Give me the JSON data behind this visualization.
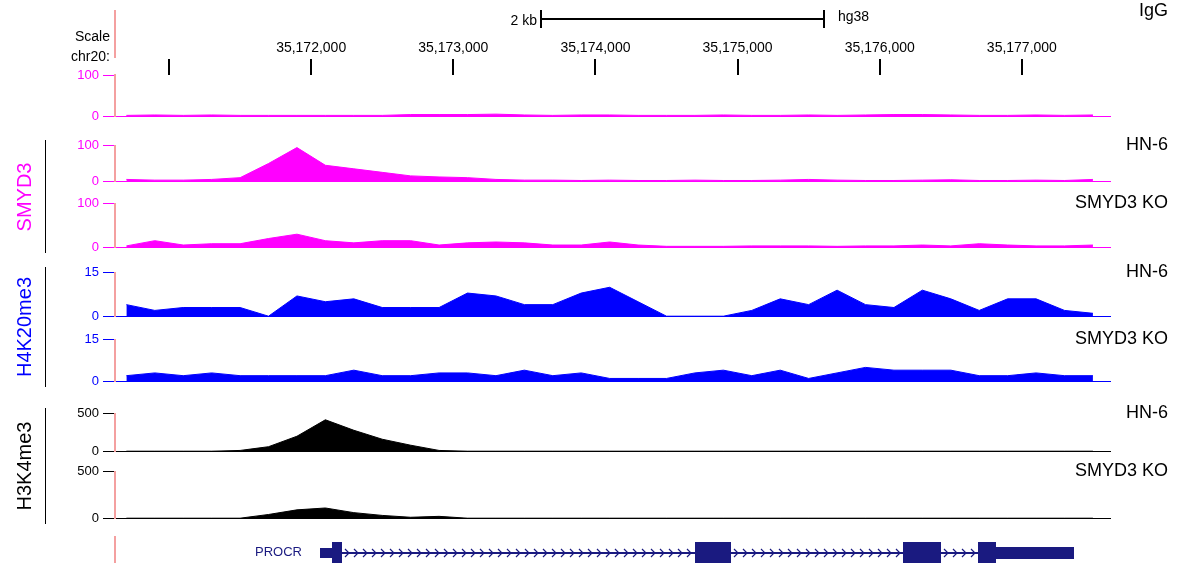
{
  "chart_data": [
    {
      "type": "area",
      "xlim": [
        35170620,
        35177620
      ],
      "xticks": [
        {
          "value": 35171000,
          "label": null
        },
        {
          "value": 35172000,
          "label": "35,172,000"
        },
        {
          "value": 35173000,
          "label": "35,173,000"
        },
        {
          "value": 35174000,
          "label": "35,174,000"
        },
        {
          "value": 35175000,
          "label": "35,175,000"
        },
        {
          "value": 35176000,
          "label": "35,176,000"
        },
        {
          "value": 35177000,
          "label": "35,177,000"
        }
      ],
      "ylim": [
        0,
        100
      ],
      "yticks": [
        0,
        100
      ],
      "annotations": [
        "Scale",
        "chr20:",
        "2 kb",
        "hg38"
      ],
      "x": [
        35170700,
        35170900,
        35171100,
        35171300,
        35171500,
        35171700,
        35171900,
        35172100,
        35172300,
        35172500,
        35172700,
        35172900,
        35173100,
        35173300,
        35173500,
        35173700,
        35173900,
        35174100,
        35174300,
        35174500,
        35174700,
        35174900,
        35175100,
        35175300,
        35175500,
        35175700,
        35175900,
        35176100,
        35176300,
        35176500,
        35176700,
        35176900,
        35177100,
        35177300,
        35177500
      ],
      "series": [
        {
          "name": "IgG",
          "color": "#ff00ff",
          "values": [
            2,
            3,
            2,
            3,
            2,
            2,
            2,
            2,
            2,
            2,
            4,
            4,
            4,
            5,
            3,
            2,
            3,
            3,
            2,
            2,
            2,
            3,
            2,
            2,
            3,
            2,
            3,
            4,
            4,
            3,
            2,
            2,
            3,
            2,
            3
          ]
        }
      ]
    },
    {
      "type": "area",
      "xlim": [
        35170620,
        35177620
      ],
      "ylim": [
        0,
        100
      ],
      "yticks": [
        0,
        100
      ],
      "tick_labels": "y",
      "ylabel": "SMYD3",
      "x": [
        35170700,
        35170900,
        35171100,
        35171300,
        35171500,
        35171700,
        35171900,
        35172100,
        35172300,
        35172500,
        35172700,
        35172900,
        35173100,
        35173300,
        35173500,
        35173700,
        35173900,
        35174100,
        35174300,
        35174500,
        35174700,
        35174900,
        35175100,
        35175300,
        35175500,
        35175700,
        35175900,
        35176100,
        35176300,
        35176500,
        35176700,
        35176900,
        35177100,
        35177300,
        35177500
      ],
      "series": [
        {
          "name": "HN-6",
          "color": "#ff00ff",
          "values": [
            5,
            3,
            3,
            5,
            10,
            50,
            95,
            45,
            35,
            25,
            15,
            12,
            10,
            5,
            3,
            3,
            2,
            3,
            2,
            2,
            3,
            2,
            2,
            3,
            5,
            3,
            2,
            2,
            3,
            4,
            2,
            2,
            3,
            2,
            5
          ]
        }
      ]
    },
    {
      "type": "area",
      "xlim": [
        35170620,
        35177620
      ],
      "ylim": [
        0,
        100
      ],
      "yticks": [
        0,
        100
      ],
      "tick_labels": "y",
      "x": [
        35170700,
        35170900,
        35171100,
        35171300,
        35171500,
        35171700,
        35171900,
        35172100,
        35172300,
        35172500,
        35172700,
        35172900,
        35173100,
        35173300,
        35173500,
        35173700,
        35173900,
        35174100,
        35174300,
        35174500,
        35174700,
        35174900,
        35175100,
        35175300,
        35175500,
        35175700,
        35175900,
        35176100,
        35176300,
        35176500,
        35176700,
        35176900,
        35177100,
        35177300,
        35177500
      ],
      "series": [
        {
          "name": "SMYD3 KO",
          "color": "#ff00ff",
          "values": [
            3,
            15,
            5,
            8,
            8,
            20,
            30,
            15,
            10,
            15,
            15,
            5,
            10,
            12,
            10,
            5,
            5,
            12,
            5,
            2,
            2,
            2,
            3,
            3,
            3,
            2,
            3,
            3,
            5,
            3,
            8,
            5,
            3,
            3,
            5
          ]
        }
      ]
    },
    {
      "type": "area",
      "xlim": [
        35170620,
        35177620
      ],
      "ylim": [
        0,
        15
      ],
      "yticks": [
        0,
        15
      ],
      "tick_labels": "y",
      "ylabel": "H4K20me3",
      "x": [
        35170700,
        35170900,
        35171100,
        35171300,
        35171500,
        35171700,
        35171900,
        35172100,
        35172300,
        35172500,
        35172700,
        35172900,
        35173100,
        35173300,
        35173500,
        35173700,
        35173900,
        35174100,
        35174300,
        35174500,
        35174700,
        35174900,
        35175100,
        35175300,
        35175500,
        35175700,
        35175900,
        35176100,
        35176300,
        35176500,
        35176700,
        35176900,
        35177100,
        35177300,
        35177500
      ],
      "series": [
        {
          "name": "HN-6",
          "color": "#0000ff",
          "values": [
            4,
            2,
            3,
            3,
            3,
            0,
            7,
            5,
            6,
            3,
            3,
            3,
            8,
            7,
            4,
            4,
            8,
            10,
            5,
            0,
            0,
            0,
            2,
            6,
            4,
            9,
            4,
            3,
            9,
            6,
            2,
            6,
            6,
            2,
            1
          ]
        }
      ]
    },
    {
      "type": "area",
      "xlim": [
        35170620,
        35177620
      ],
      "ylim": [
        0,
        15
      ],
      "yticks": [
        0,
        15
      ],
      "tick_labels": "y",
      "x": [
        35170700,
        35170900,
        35171100,
        35171300,
        35171500,
        35171700,
        35171900,
        35172100,
        35172300,
        35172500,
        35172700,
        35172900,
        35173100,
        35173300,
        35173500,
        35173700,
        35173900,
        35174100,
        35174300,
        35174500,
        35174700,
        35174900,
        35175100,
        35175300,
        35175500,
        35175700,
        35175900,
        35176100,
        35176300,
        35176500,
        35176700,
        35176900,
        35177100,
        35177300,
        35177500
      ],
      "series": [
        {
          "name": "SMYD3 KO",
          "color": "#0000ff",
          "values": [
            2,
            3,
            2,
            3,
            2,
            2,
            2,
            2,
            4,
            2,
            2,
            3,
            3,
            2,
            4,
            2,
            3,
            1,
            1,
            1,
            3,
            4,
            2,
            4,
            1,
            3,
            5,
            4,
            4,
            4,
            2,
            2,
            3,
            2,
            2
          ]
        }
      ]
    },
    {
      "type": "area",
      "xlim": [
        35170620,
        35177620
      ],
      "ylim": [
        0,
        500
      ],
      "yticks": [
        0,
        500
      ],
      "tick_labels": "y",
      "ylabel": "H3K4me3",
      "x": [
        35170700,
        35170900,
        35171100,
        35171300,
        35171500,
        35171700,
        35171900,
        35172100,
        35172300,
        35172500,
        35172700,
        35172900,
        35173100,
        35173300,
        35173500,
        35173700,
        35173900,
        35174100,
        35174300,
        35174500,
        35174700,
        35174900,
        35175100,
        35175300,
        35175500,
        35175700,
        35175900,
        35176100,
        35176300,
        35176500,
        35176700,
        35176900,
        35177100,
        35177300,
        35177500
      ],
      "series": [
        {
          "name": "HN-6",
          "color": "#000000",
          "values": [
            0,
            0,
            0,
            0,
            10,
            60,
            200,
            420,
            280,
            160,
            80,
            10,
            0,
            0,
            0,
            0,
            0,
            0,
            0,
            0,
            0,
            0,
            0,
            0,
            0,
            0,
            0,
            0,
            0,
            0,
            0,
            0,
            0,
            0,
            0
          ]
        }
      ]
    },
    {
      "type": "area",
      "xlim": [
        35170620,
        35177620
      ],
      "ylim": [
        0,
        500
      ],
      "yticks": [
        0,
        500
      ],
      "tick_labels": "y",
      "annotations": [
        "PROCR"
      ],
      "x": [
        35170700,
        35170900,
        35171100,
        35171300,
        35171500,
        35171700,
        35171900,
        35172100,
        35172300,
        35172500,
        35172700,
        35172900,
        35173100,
        35173300,
        35173500,
        35173700,
        35173900,
        35174100,
        35174300,
        35174500,
        35174700,
        35174900,
        35175100,
        35175300,
        35175500,
        35175700,
        35175900,
        35176100,
        35176300,
        35176500,
        35176700,
        35176900,
        35177100,
        35177300,
        35177500
      ],
      "series": [
        {
          "name": "SMYD3 KO",
          "color": "#000000",
          "values": [
            0,
            0,
            0,
            0,
            0,
            40,
            90,
            110,
            60,
            30,
            10,
            20,
            0,
            0,
            0,
            0,
            0,
            0,
            0,
            0,
            0,
            0,
            0,
            0,
            0,
            0,
            0,
            0,
            0,
            0,
            0,
            0,
            0,
            0,
            0
          ]
        }
      ]
    }
  ]
}
